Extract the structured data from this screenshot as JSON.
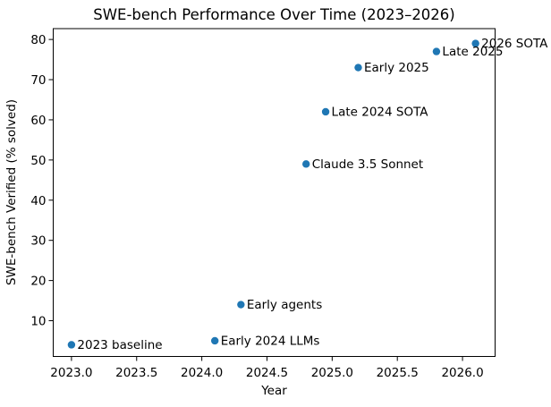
{
  "chart_data": {
    "type": "scatter",
    "title": "SWE-bench Performance Over Time (2023–2026)",
    "xlabel": "Year",
    "ylabel": "SWE-bench Verified (% solved)",
    "xlim": [
      2022.86,
      2026.25
    ],
    "ylim": [
      1.1,
      82.7
    ],
    "xticks": [
      2023.0,
      2023.5,
      2024.0,
      2024.5,
      2025.0,
      2025.5,
      2026.0
    ],
    "yticks": [
      10,
      20,
      30,
      40,
      50,
      60,
      70,
      80
    ],
    "grid": false,
    "legend": "none",
    "marker_color": "#1f77b4",
    "axis_color": "#000000",
    "background_color": "#ffffff",
    "points": [
      {
        "x": 2023.0,
        "y": 4,
        "label": "2023 baseline"
      },
      {
        "x": 2024.1,
        "y": 5,
        "label": "Early 2024 LLMs"
      },
      {
        "x": 2024.3,
        "y": 14,
        "label": "Early agents"
      },
      {
        "x": 2024.8,
        "y": 49,
        "label": "Claude 3.5 Sonnet"
      },
      {
        "x": 2024.95,
        "y": 62,
        "label": "Late 2024 SOTA"
      },
      {
        "x": 2025.2,
        "y": 73,
        "label": "Early 2025"
      },
      {
        "x": 2025.8,
        "y": 77,
        "label": "Late 2025"
      },
      {
        "x": 2026.1,
        "y": 79,
        "label": "2026 SOTA"
      }
    ]
  }
}
